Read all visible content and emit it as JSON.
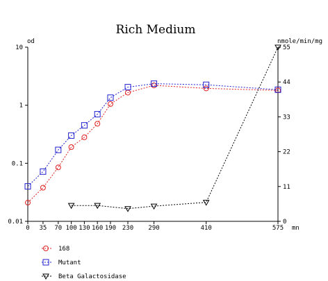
{
  "chart_data": {
    "type": "line",
    "title": "Rich Medium",
    "left_unit": "od",
    "right_unit": "nmole/min/mg",
    "x_unit": "mn",
    "left_axis_scale": "log",
    "left_ylim": [
      0.01,
      10
    ],
    "left_ticks": [
      "10",
      "1",
      "0.1",
      "0.01"
    ],
    "right_ylim": [
      0,
      55
    ],
    "right_ticks": [
      "55",
      "44",
      "33",
      "22",
      "11",
      "0"
    ],
    "xlim": [
      0,
      575
    ],
    "x_tick_labels": [
      "0",
      "35",
      "70",
      "100",
      "130",
      "160",
      "190",
      "230",
      "290",
      "410",
      "575"
    ],
    "legend_position": "bottom-left",
    "series": [
      {
        "name": "168",
        "axis": "left",
        "color": "#e02020",
        "marker": "circle",
        "x": [
          0,
          35,
          70,
          100,
          130,
          160,
          190,
          230,
          290,
          410,
          575
        ],
        "y": [
          0.021,
          0.038,
          0.085,
          0.19,
          0.28,
          0.48,
          1.05,
          1.65,
          2.2,
          1.95,
          1.8
        ]
      },
      {
        "name": "Mutant",
        "axis": "left",
        "color": "#2020d0",
        "marker": "square",
        "x": [
          0,
          35,
          70,
          100,
          130,
          160,
          190,
          230,
          290,
          410,
          575
        ],
        "y": [
          0.04,
          0.072,
          0.17,
          0.3,
          0.45,
          0.7,
          1.35,
          2.05,
          2.35,
          2.25,
          1.85
        ]
      },
      {
        "name": "Beta Galactosidase",
        "axis": "right",
        "color": "#000000",
        "marker": "triangle-down",
        "x": [
          100,
          160,
          230,
          290,
          410,
          575
        ],
        "y": [
          5,
          5,
          4,
          4.8,
          6,
          55
        ]
      }
    ]
  }
}
